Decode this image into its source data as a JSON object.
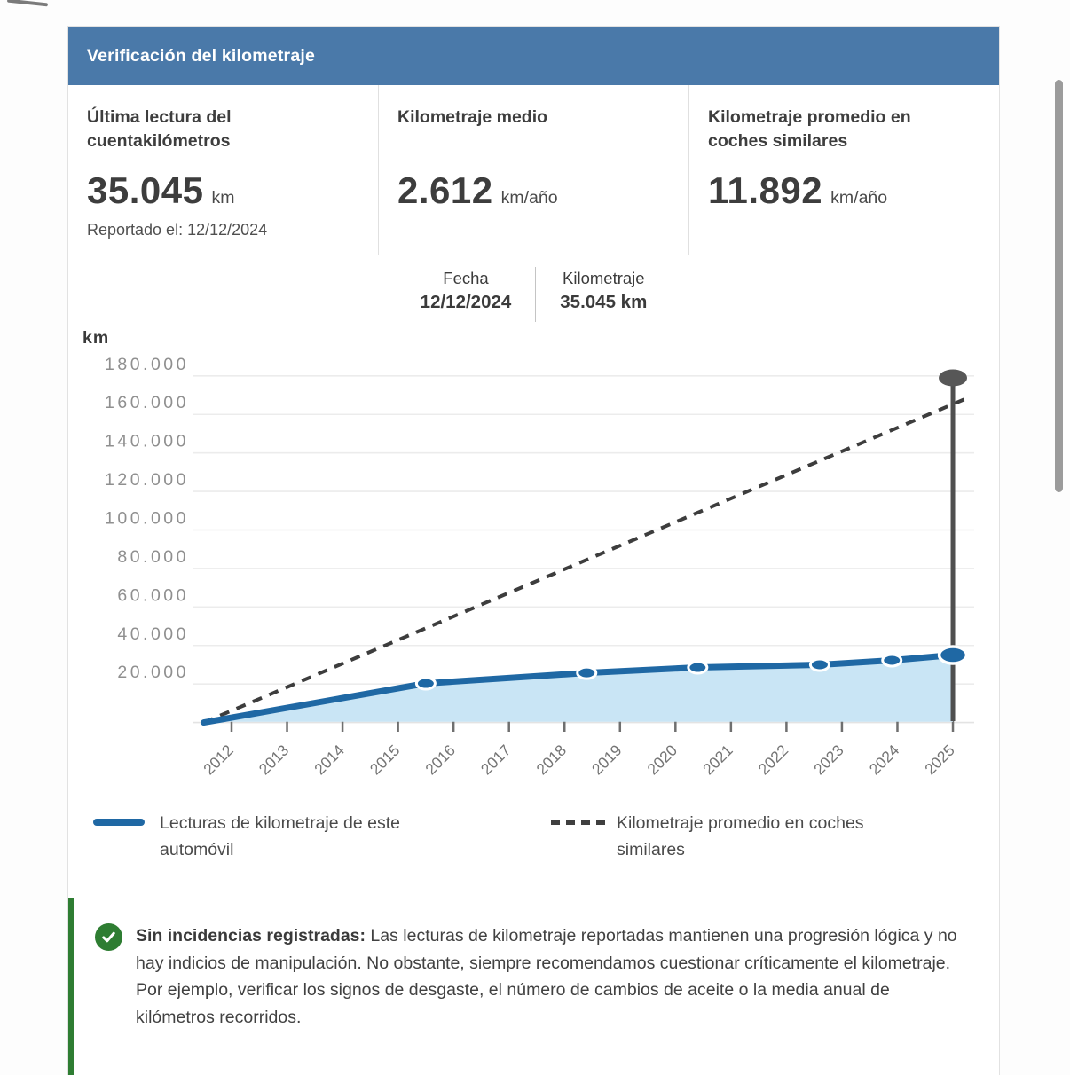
{
  "card": {
    "header": {
      "title": "Verificación del kilometraje",
      "bg": "#4a79a9"
    },
    "stats": [
      {
        "heading": "Última lectura del cuentakilómetros",
        "value": "35.045",
        "unit": "km",
        "sub": "Reportado el: 12/12/2024"
      },
      {
        "heading": "Kilometraje medio",
        "value": "2.612",
        "unit": "km/año"
      },
      {
        "heading": "Kilometraje promedio en coches similares",
        "value": "11.892",
        "unit": "km/año"
      }
    ],
    "readout": {
      "items": [
        {
          "label": "Fecha",
          "value": "12/12/2024"
        },
        {
          "label": "Kilometraje",
          "value": "35.045 km"
        }
      ]
    },
    "legend": [
      {
        "swatch": "solid-line",
        "label": "Lecturas de kilometraje de este automóvil"
      },
      {
        "swatch": "dashed-line",
        "label": "Kilometraje promedio en coches similares"
      }
    ],
    "note": {
      "icon": "check-circle",
      "accent_color": "#2e7d32",
      "lead": "Sin incidencias registradas:",
      "body": " Las lecturas de kilometraje reportadas mantienen una progresión lógica y no hay indicios de manipulación. No obstante, siempre recomendamos cuestionar críticamente el kilometraje. Por ejemplo, verificar los signos de desgaste, el número de cambios de aceite o la media anual de kilómetros recorridos."
    }
  },
  "chart_data": {
    "type": "area",
    "title": "",
    "ylabel": "km",
    "xlabel": "",
    "x_ticks": [
      2012,
      2013,
      2014,
      2015,
      2016,
      2017,
      2018,
      2019,
      2020,
      2021,
      2022,
      2023,
      2024,
      2025
    ],
    "y_ticks": [
      20000,
      40000,
      60000,
      80000,
      100000,
      120000,
      140000,
      160000,
      180000
    ],
    "x_domain": [
      2011.4,
      2025.4
    ],
    "y_domain": [
      0,
      186000
    ],
    "grid": "horizontal",
    "legend_position": "bottom",
    "series": [
      {
        "name": "Lecturas de kilometraje de este automóvil",
        "style": "solid",
        "color": "#1f68a4",
        "fill": "#c9e5f5",
        "markers_from_index": 1,
        "end_marker": "large",
        "points": [
          [
            2011.5,
            0
          ],
          [
            2015.5,
            20300
          ],
          [
            2018.4,
            25800
          ],
          [
            2020.4,
            28600
          ],
          [
            2022.6,
            30000
          ],
          [
            2023.9,
            32300
          ],
          [
            2025.0,
            35045
          ]
        ]
      },
      {
        "name": "Kilometraje promedio en coches similares",
        "style": "dashed",
        "color": "#3d3d3d",
        "points": [
          [
            2011.5,
            0
          ],
          [
            2025.3,
            169000
          ]
        ]
      }
    ],
    "cursor": {
      "year": 2025.0,
      "knob_km": 179000,
      "selected_date": "12/12/2024",
      "selected_km": 35045
    }
  }
}
